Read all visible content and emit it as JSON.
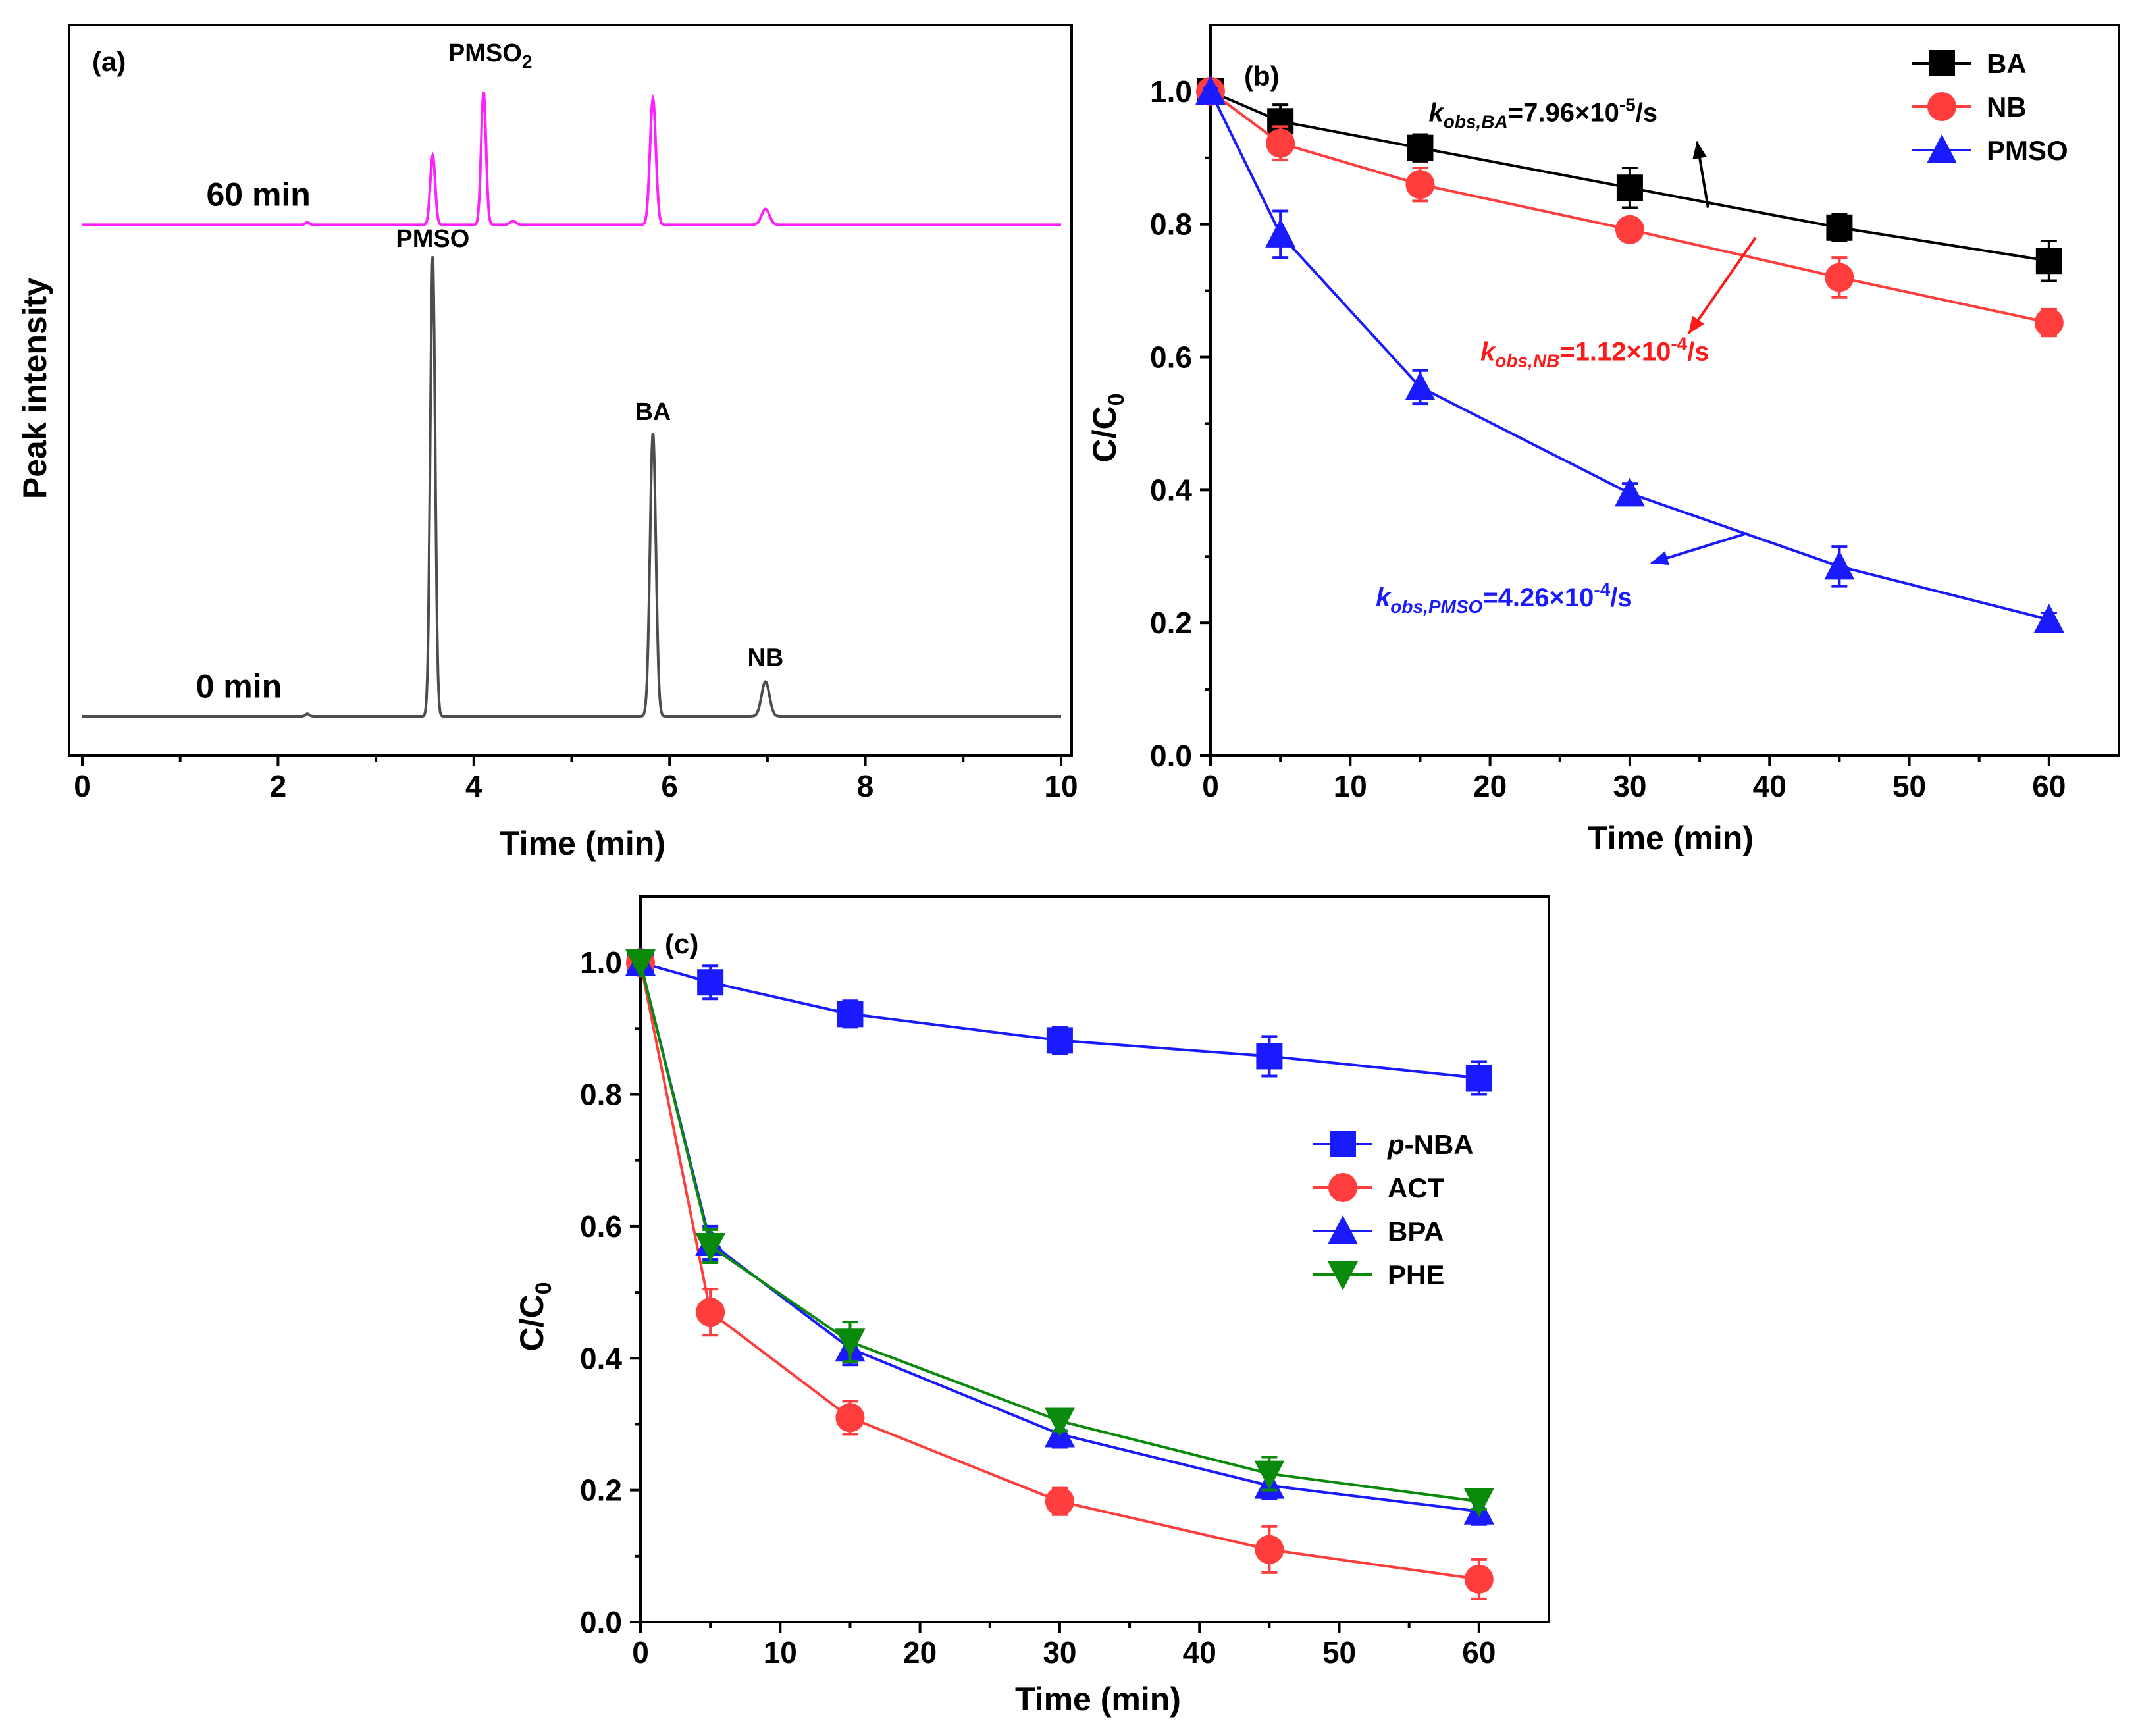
{
  "chart_data": [
    {
      "panel": "(a)",
      "type": "line",
      "xlabel": "Time (min)",
      "ylabel": "Peak intensity",
      "xlim": [
        0,
        10
      ],
      "xticks": [
        0,
        2,
        4,
        6,
        8,
        10
      ],
      "traces": [
        {
          "name": "60 min",
          "color": "#ff1fff",
          "baseline": 0.78,
          "peaks": [
            {
              "t": 2.3,
              "h": 0.004,
              "w": 0.02
            },
            {
              "t": 3.58,
              "h": 0.11,
              "w": 0.025
            },
            {
              "t": 4.1,
              "h": 0.21,
              "w": 0.025
            },
            {
              "t": 4.4,
              "h": 0.006,
              "w": 0.03
            },
            {
              "t": 5.83,
              "h": 0.2,
              "w": 0.03
            },
            {
              "t": 6.98,
              "h": 0.025,
              "w": 0.04
            }
          ]
        },
        {
          "name": "0 min",
          "color": "#4d4d4d",
          "baseline": 0.0,
          "peaks": [
            {
              "t": 2.3,
              "h": 0.004,
              "w": 0.02
            },
            {
              "t": 3.58,
              "h": 0.73,
              "w": 0.025
            },
            {
              "t": 5.83,
              "h": 0.45,
              "w": 0.03
            },
            {
              "t": 6.98,
              "h": 0.055,
              "w": 0.04
            }
          ]
        }
      ],
      "peak_labels": [
        {
          "text": "PMSO",
          "t": 3.58,
          "y": 0.745,
          "color": "#000000"
        },
        {
          "text": "BA",
          "t": 5.83,
          "y": 0.47,
          "color": "#000000"
        },
        {
          "text": "NB",
          "t": 6.98,
          "y": 0.08,
          "color": "#000000"
        }
      ],
      "pmso2_label": {
        "text": "PMSO",
        "sub": "2",
        "t": 4.1,
        "color": "#ff1fff"
      },
      "trace_labels": [
        {
          "text": "60 min",
          "t": 1.8,
          "y": 0.81
        },
        {
          "text": "0 min",
          "t": 1.6,
          "y": 0.03
        }
      ]
    },
    {
      "panel": "(b)",
      "type": "line",
      "xlabel": "Time (min)",
      "ylabel_main": "C/C",
      "ylabel_sub": "0",
      "xlim": [
        0,
        65
      ],
      "ylim": [
        0,
        1.1
      ],
      "xticks": [
        0,
        10,
        20,
        30,
        40,
        50,
        60
      ],
      "yticks": [
        "0.0",
        "0.2",
        "0.4",
        "0.6",
        "0.8",
        "1.0"
      ],
      "series": [
        {
          "name": "BA",
          "color": "#000000",
          "marker": "square",
          "x": [
            0,
            5,
            15,
            30,
            45,
            60
          ],
          "y": [
            1.0,
            0.955,
            0.915,
            0.855,
            0.795,
            0.745
          ],
          "err": [
            0.005,
            0.025,
            0.02,
            0.03,
            0.02,
            0.03
          ]
        },
        {
          "name": "NB",
          "color": "#ff3d3d",
          "marker": "circle",
          "x": [
            0,
            5,
            15,
            30,
            45,
            60
          ],
          "y": [
            1.0,
            0.922,
            0.86,
            0.792,
            0.72,
            0.652
          ],
          "err": [
            0.005,
            0.025,
            0.025,
            0.015,
            0.03,
            0.02
          ]
        },
        {
          "name": "PMSO",
          "color": "#1a1aff",
          "marker": "triangle",
          "x": [
            0,
            5,
            15,
            30,
            45,
            60
          ],
          "y": [
            1.0,
            0.785,
            0.555,
            0.395,
            0.285,
            0.205
          ],
          "err": [
            0.005,
            0.035,
            0.025,
            0.015,
            0.03,
            0.01
          ]
        }
      ],
      "annotations": [
        {
          "k": "k",
          "sub": "obs,BA",
          "rest": "=7.96×10",
          "sup": "-5",
          "unit": "/s",
          "color": "#000000",
          "x": 23.8,
          "y": 0.955
        },
        {
          "k": "k",
          "sub": "obs,NB",
          "rest": "=1.12×10",
          "sup": "-4",
          "unit": "/s",
          "color": "#ff1a1a",
          "x": 27.5,
          "y": 0.595
        },
        {
          "k": "k",
          "sub": "obs,PMSO",
          "rest": "=4.26×10",
          "sup": "-4",
          "unit": "/s",
          "color": "#1a1aff",
          "x": 21,
          "y": 0.225
        }
      ],
      "arrows": [
        {
          "color": "#000000",
          "x1": 35.6,
          "y1": 0.825,
          "x2": 34.8,
          "y2": 0.925
        },
        {
          "color": "#ff1a1a",
          "x1": 39,
          "y1": 0.78,
          "x2": 34.2,
          "y2": 0.635
        },
        {
          "color": "#1a1aff",
          "x1": 38.4,
          "y1": 0.335,
          "x2": 31.5,
          "y2": 0.29
        }
      ],
      "legend": {
        "position": "top-right",
        "entries": [
          "BA",
          "NB",
          "PMSO"
        ]
      }
    },
    {
      "panel": "(c)",
      "type": "line",
      "xlabel": "Time (min)",
      "ylabel_main": "C/C",
      "ylabel_sub": "0",
      "xlim": [
        0,
        65
      ],
      "ylim": [
        0,
        1.1
      ],
      "xticks": [
        0,
        10,
        20,
        30,
        40,
        50,
        60
      ],
      "yticks": [
        "0.0",
        "0.2",
        "0.4",
        "0.6",
        "0.8",
        "1.0"
      ],
      "series": [
        {
          "name": "p-NBA",
          "label_italic": "p",
          "label_rest": "-NBA",
          "color": "#1a1aff",
          "marker": "square",
          "x": [
            0,
            5,
            15,
            30,
            45,
            60
          ],
          "y": [
            1.0,
            0.97,
            0.922,
            0.882,
            0.858,
            0.825
          ],
          "err": [
            0.005,
            0.025,
            0.02,
            0.02,
            0.03,
            0.025
          ]
        },
        {
          "name": "ACT",
          "color": "#ff3d3d",
          "marker": "circle",
          "x": [
            0,
            5,
            15,
            30,
            45,
            60
          ],
          "y": [
            1.0,
            0.47,
            0.31,
            0.183,
            0.11,
            0.065
          ],
          "err": [
            0.005,
            0.035,
            0.025,
            0.02,
            0.035,
            0.03
          ]
        },
        {
          "name": "BPA",
          "color": "#1a1aff",
          "marker": "triangle",
          "x": [
            0,
            5,
            15,
            30,
            45,
            60
          ],
          "y": [
            1.0,
            0.575,
            0.415,
            0.285,
            0.207,
            0.168
          ],
          "err": [
            0.005,
            0.025,
            0.025,
            0.02,
            0.02,
            0.02
          ]
        },
        {
          "name": "PHE",
          "color": "#0a8a0a",
          "marker": "triangle-down",
          "x": [
            0,
            5,
            15,
            30,
            45,
            60
          ],
          "y": [
            1.0,
            0.57,
            0.425,
            0.305,
            0.225,
            0.183
          ],
          "err": [
            0.005,
            0.025,
            0.03,
            0.015,
            0.025,
            0.012
          ]
        }
      ],
      "legend": {
        "position": "center-right",
        "entries": [
          "p-NBA",
          "ACT",
          "BPA",
          "PHE"
        ]
      }
    }
  ]
}
